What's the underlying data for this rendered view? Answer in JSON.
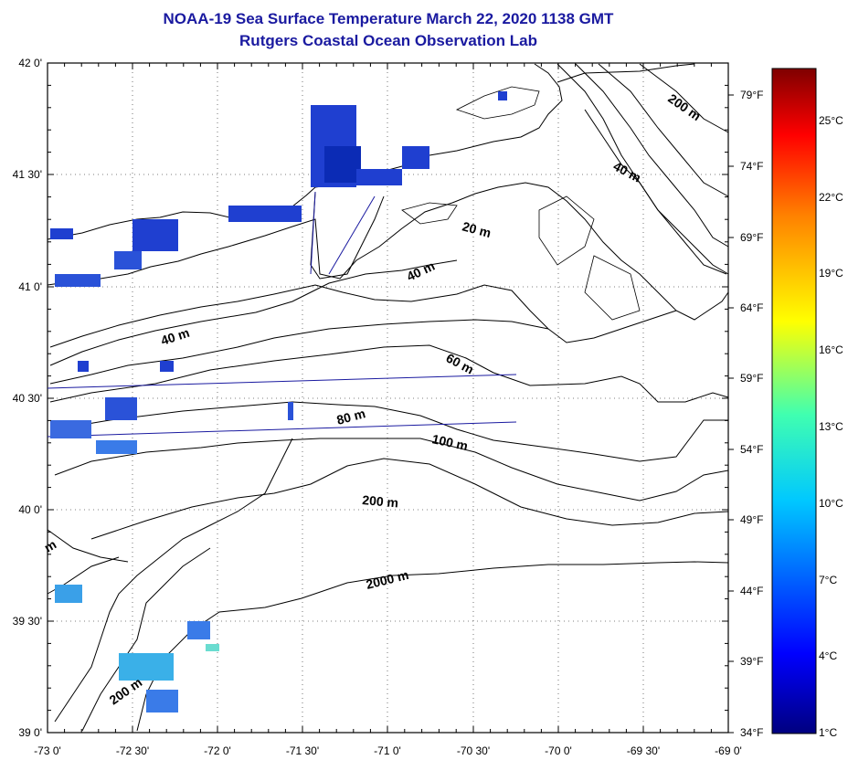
{
  "header": {
    "title": "NOAA-19 Sea Surface Temperature March 22, 2020 1138 GMT",
    "subtitle": "Rutgers Coastal Ocean Observation Lab"
  },
  "map": {
    "lat_labels": [
      "42 0'",
      "41 30'",
      "41 0'",
      "40 30'",
      "40 0'",
      "39 30'",
      "39 0'"
    ],
    "lon_labels": [
      "-73 0'",
      "-72 30'",
      "-72 0'",
      "-71 30'",
      "-71 0'",
      "-70 30'",
      "-70 0'",
      "-69 30'",
      "-69 0'"
    ],
    "contour_labels": [
      "200 m",
      "40 m",
      "20 m",
      "40 m",
      "40 m",
      "60 m",
      "80 m",
      "100 m",
      "200 m",
      "2000 m",
      "200 m",
      "m"
    ],
    "land_color": "#ffffff",
    "sst_color_cold": "#1f3fd0"
  },
  "colorbar": {
    "fahrenheit_labels": [
      "79°F",
      "74°F",
      "69°F",
      "64°F",
      "59°F",
      "54°F",
      "49°F",
      "44°F",
      "39°F",
      "34°F"
    ],
    "celsius_labels": [
      "25°C",
      "22°C",
      "19°C",
      "16°C",
      "13°C",
      "10°C",
      "7°C",
      "4°C",
      "1°C"
    ],
    "colors": [
      "#00007f",
      "#0000ff",
      "#007fff",
      "#00ffff",
      "#7fff7f",
      "#ffff00",
      "#ff7f00",
      "#ff0000",
      "#7f0000"
    ]
  }
}
